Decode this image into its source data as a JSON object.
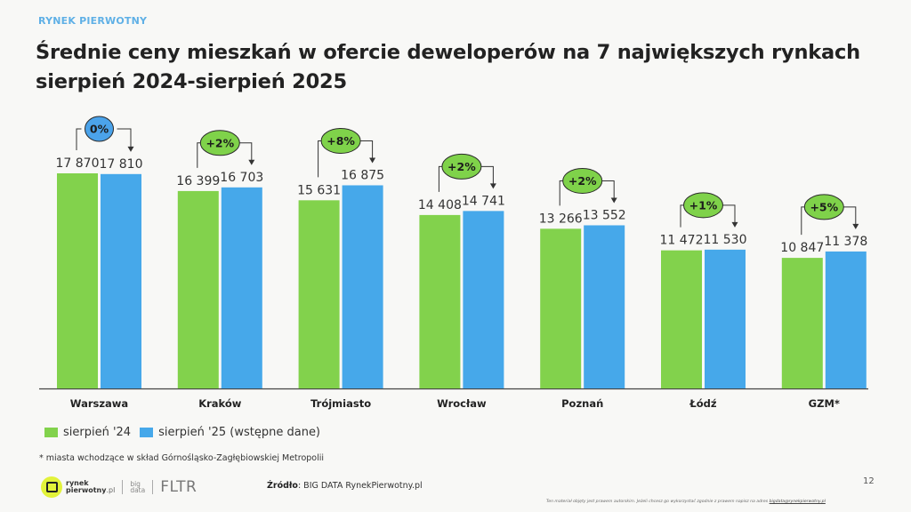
{
  "header": {
    "kicker": "RYNEK PIERWOTNY",
    "title_line1": "Średnie ceny mieszkań w ofercie deweloperów na 7 największych rynkach",
    "title_line2": "sierpień 2024-sierpień 2025"
  },
  "colors": {
    "series_2024": "#82d24c",
    "series_2025": "#46a8ea",
    "badge_green": "#7fd24a",
    "badge_blue": "#4ba3ea",
    "kicker": "#5fb0e6"
  },
  "chart_data": {
    "type": "bar",
    "title": "Średnie ceny mieszkań w ofercie deweloperów na 7 największych rynkach sierpień 2024-sierpień 2025",
    "xlabel": "",
    "ylabel": "",
    "ylim": [
      0,
      17870
    ],
    "grid": false,
    "categories": [
      "Warszawa",
      "Kraków",
      "Trójmiasto",
      "Wrocław",
      "Poznań",
      "Łódź",
      "GZM*"
    ],
    "series": [
      {
        "name": "sierpień '24",
        "values": [
          17870,
          16399,
          15631,
          14408,
          13266,
          11472,
          10847
        ],
        "labels": [
          "17 870",
          "16 399",
          "15 631",
          "14 408",
          "13 266",
          "11 472",
          "10 847"
        ]
      },
      {
        "name": "sierpień '25 (wstępne dane)",
        "values": [
          17810,
          16703,
          16875,
          14741,
          13552,
          11530,
          11378
        ],
        "labels": [
          "17 810",
          "16 703",
          "16 875",
          "14 741",
          "13 552",
          "11 530",
          "11 378"
        ]
      }
    ],
    "changes": [
      "0%",
      "+2%",
      "+8%",
      "+2%",
      "+2%",
      "+1%",
      "+5%"
    ],
    "legend_position": "bottom-left"
  },
  "legend": {
    "items": [
      "sierpień '24",
      "sierpień '25 (wstępne dane)"
    ]
  },
  "footnote": "* miasta wchodzące w skład Górnośląsko-Zagłębiowskiej Metropolii",
  "footer": {
    "logo_rynek": "rynek",
    "logo_pierwotny": "pierwotny",
    "logo_pl": ".pl",
    "bigdata_1": "big",
    "bigdata_2": "data",
    "fltr": "FLTR",
    "source_label": "Źródło",
    "source_value": ": BIG DATA RynekPierwotny.pl",
    "page_number": "12",
    "disclaimer": "Ten materiał objęty jest prawem autorskim. Jeżeli chcesz go wykorzystać zgodnie z prawem napisz na adres ",
    "disclaimer_link": "bigdata@rynekpierwotny.pl"
  }
}
